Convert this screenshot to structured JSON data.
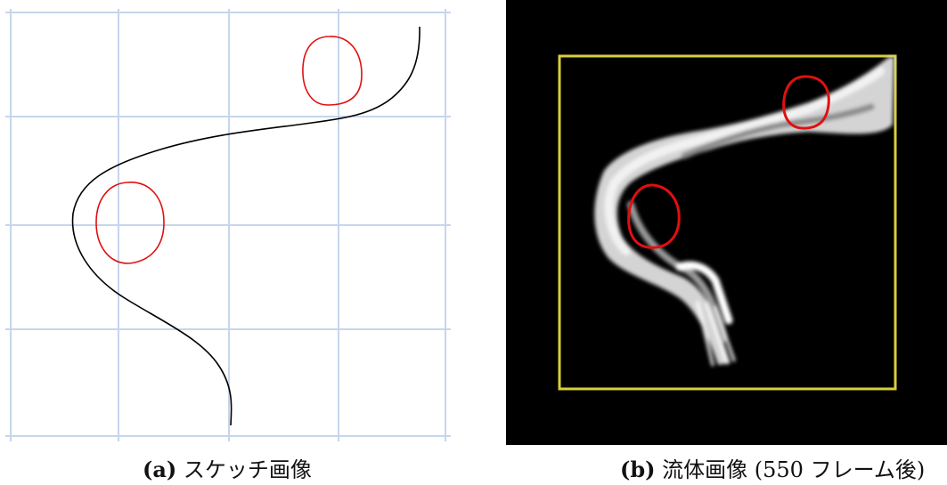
{
  "figures": [
    {
      "label": "(a)",
      "caption": "スケッチ画像",
      "content": {
        "background": "#ffffff",
        "grid_color": "#c6d6ec",
        "path_color": "#000000",
        "obstacle_color": "#e01010"
      }
    },
    {
      "label": "(b)",
      "caption": "流体画像 (550 フレーム後)",
      "content": {
        "background": "#000000",
        "domain_border_color": "#d8cf3a",
        "obstacle_color": "#e01010",
        "smoke_color": "#d9d9d9"
      }
    }
  ]
}
